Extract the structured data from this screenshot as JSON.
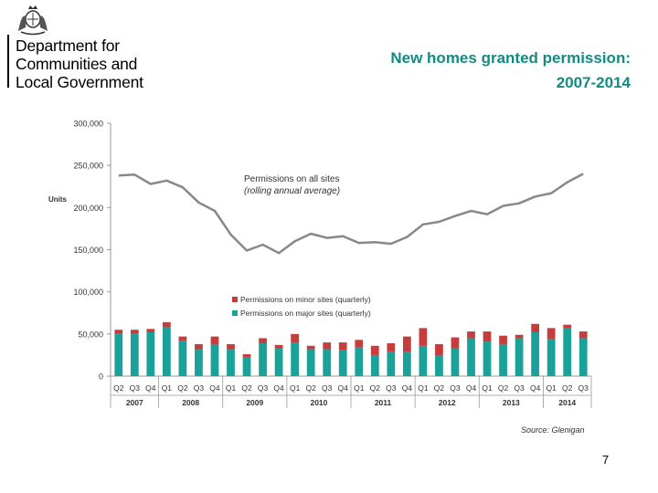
{
  "logo": {
    "line1": "Department for",
    "line2": "Communities and",
    "line3": "Local Government"
  },
  "title": {
    "line1": "New homes granted permission:",
    "line2": "2007-2014"
  },
  "source": "Source: Glenigan",
  "page_number": "7",
  "colors": {
    "title": "#138a82",
    "line": "#888888",
    "minor": "#c63d3d",
    "major": "#1aa19a",
    "axis": "#999999",
    "text": "#333333"
  },
  "chart_data": {
    "type": "bar",
    "title": "New homes granted permission: 2007-2014",
    "ylabel": "Units",
    "xlabel": "",
    "ylim": [
      0,
      300000
    ],
    "y_ticks": [
      "0",
      "50,000",
      "100,000",
      "150,000",
      "200,000",
      "250,000",
      "300,000"
    ],
    "y_tick_values": [
      0,
      50000,
      100000,
      150000,
      200000,
      250000,
      300000
    ],
    "categories": [
      "Q2",
      "Q3",
      "Q4",
      "Q1",
      "Q2",
      "Q3",
      "Q4",
      "Q1",
      "Q2",
      "Q3",
      "Q4",
      "Q1",
      "Q2",
      "Q3",
      "Q4",
      "Q1",
      "Q2",
      "Q3",
      "Q4",
      "Q1",
      "Q2",
      "Q3",
      "Q4",
      "Q1",
      "Q2",
      "Q3",
      "Q4",
      "Q1",
      "Q2",
      "Q3"
    ],
    "years": [
      {
        "label": "2007",
        "start": 0,
        "count": 3
      },
      {
        "label": "2008",
        "start": 3,
        "count": 4
      },
      {
        "label": "2009",
        "start": 7,
        "count": 4
      },
      {
        "label": "2010",
        "start": 11,
        "count": 4
      },
      {
        "label": "2011",
        "start": 15,
        "count": 4
      },
      {
        "label": "2012",
        "start": 19,
        "count": 4
      },
      {
        "label": "2013",
        "start": 23,
        "count": 4
      },
      {
        "label": "2014",
        "start": 27,
        "count": 3
      }
    ],
    "series": [
      {
        "name": "Permissions on major sites (quarterly)",
        "kind": "stacked-bar",
        "values": [
          50000,
          50000,
          52000,
          58000,
          42000,
          32000,
          37000,
          32000,
          22000,
          39000,
          33000,
          40000,
          32000,
          32000,
          31000,
          34000,
          25000,
          29000,
          29000,
          36000,
          24000,
          33000,
          45000,
          41000,
          38000,
          45000,
          52000,
          44000,
          57000,
          45000
        ]
      },
      {
        "name": "Permissions on minor sites (quarterly)",
        "kind": "stacked-bar",
        "values": [
          5000,
          5000,
          4000,
          6000,
          5000,
          6000,
          10000,
          6000,
          4000,
          6000,
          4000,
          10000,
          4000,
          8000,
          9000,
          9000,
          11000,
          10000,
          18000,
          21000,
          14000,
          13000,
          8000,
          12000,
          10000,
          4000,
          10000,
          13000,
          4000,
          8000
        ]
      },
      {
        "name": "Permissions on all sites (rolling annual average)",
        "kind": "line",
        "values": [
          238000,
          239000,
          228000,
          232000,
          224000,
          206000,
          196000,
          168000,
          149000,
          156000,
          146000,
          160000,
          169000,
          164000,
          166000,
          158000,
          159000,
          157000,
          165000,
          180000,
          183000,
          190000,
          196000,
          192000,
          202000,
          205000,
          213000,
          217000,
          230000,
          240000
        ]
      }
    ],
    "line_annotation": {
      "line1": "Permissions on all sites",
      "line2": "(rolling annual average)"
    },
    "legend_position": "middle-left"
  }
}
